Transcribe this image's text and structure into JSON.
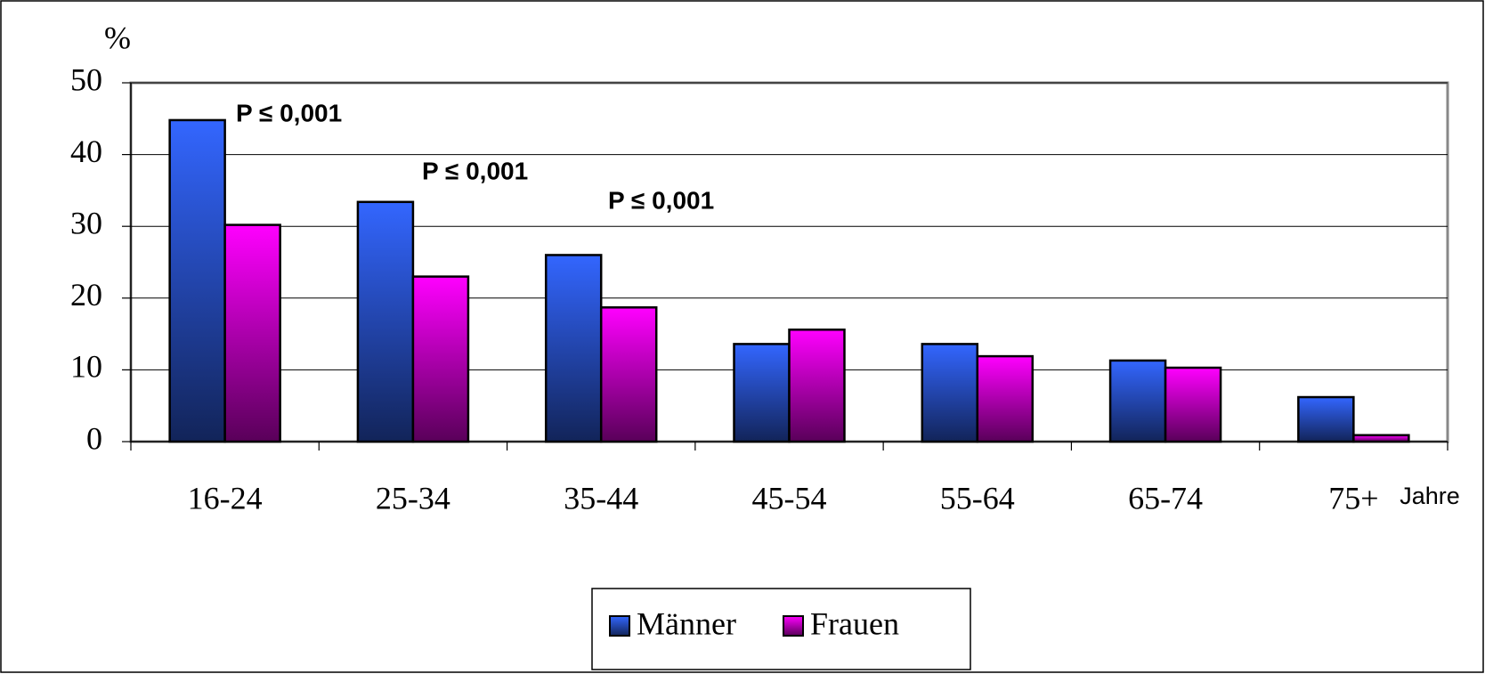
{
  "chart_data": {
    "type": "bar",
    "y_label": "%",
    "x_label": "Jahre",
    "categories": [
      "16-24",
      "25-34",
      "35-44",
      "45-54",
      "55-64",
      "65-74",
      "75+"
    ],
    "series": [
      {
        "name": "Männer",
        "color": "#3366ff",
        "values": [
          44.8,
          33.4,
          26,
          13.6,
          13.6,
          11.3,
          6.2
        ]
      },
      {
        "name": "Frauen",
        "color": "#ff00ff",
        "values": [
          30.2,
          23,
          18.7,
          15.6,
          11.9,
          10.3,
          0.9
        ]
      }
    ],
    "annotations": [
      "P ≤ 0,001",
      "P ≤ 0,001",
      "P ≤ 0,001"
    ],
    "ylim": [
      0,
      50
    ],
    "yticks": [
      0,
      10,
      20,
      30,
      40,
      50
    ],
    "grid": true
  }
}
